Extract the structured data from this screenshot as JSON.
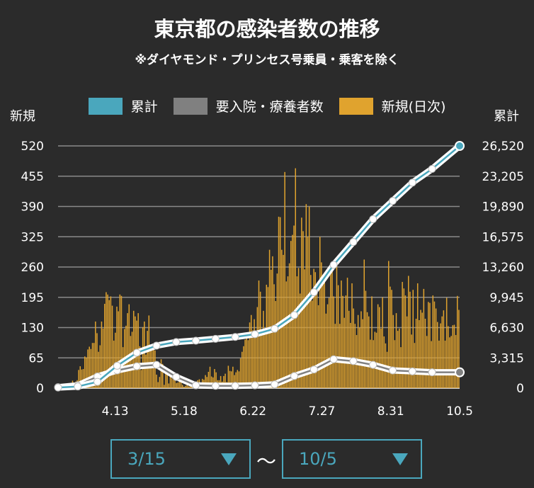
{
  "title": "東京都の感染者数の推移",
  "subtitle": "※ダイヤモンド・プリンセス号乗員・乗客を除く",
  "legend": [
    {
      "label": "累計",
      "color": "#4aa7bd"
    },
    {
      "label": "要入院・療養者数",
      "color": "#808080"
    },
    {
      "label": "新規(日次)",
      "color": "#e0a32e"
    }
  ],
  "axis": {
    "left_title": "新規",
    "right_title": "累計"
  },
  "range": {
    "from": "3/15",
    "to": "10/5",
    "separator": "～"
  },
  "chart_data": {
    "type": "bar",
    "x_start": "3/15",
    "x_end": "10/5",
    "x_ticks": [
      "4.13",
      "5.18",
      "6.22",
      "7.27",
      "8.31",
      "10.5"
    ],
    "y_left": {
      "ticks": [
        0,
        65,
        130,
        195,
        260,
        325,
        390,
        455,
        520
      ],
      "ylim": [
        0,
        520
      ]
    },
    "y_right": {
      "ticks": [
        "0",
        "3,315",
        "6,630",
        "9,945",
        "13,260",
        "16,575",
        "19,890",
        "23,205",
        "26,520"
      ],
      "ylim": [
        0,
        26520
      ]
    },
    "grid": true,
    "series": [
      {
        "name": "新規(日次)",
        "type": "bar",
        "axis": "left",
        "values": [
          1,
          3,
          2,
          5,
          4,
          7,
          2,
          10,
          2,
          16,
          8,
          14,
          17,
          39,
          47,
          40,
          41,
          68,
          66,
          83,
          89,
          84,
          97,
          97,
          143,
          118,
          78,
          92,
          143,
          128,
          181,
          206,
          201,
          189,
          197,
          177,
          102,
          119,
          175,
          165,
          201,
          198,
          88,
          127,
          134,
          161,
          180,
          112,
          121,
          166,
          154,
          145,
          161,
          90,
          39,
          131,
          143,
          72,
          123,
          156,
          91,
          86,
          85,
          81,
          29,
          13,
          24,
          62,
          52,
          7,
          39,
          30,
          10,
          32,
          21,
          18,
          23,
          11,
          12,
          14,
          17,
          7,
          3,
          5,
          8,
          4,
          9,
          10,
          13,
          14,
          4,
          17,
          19,
          12,
          20,
          18,
          28,
          24,
          35,
          46,
          25,
          23,
          41,
          34,
          17,
          17,
          26,
          14,
          26,
          31,
          13,
          48,
          37,
          36,
          46,
          28,
          34,
          39,
          36,
          64,
          78,
          90,
          104,
          116,
          103,
          141,
          157,
          124,
          148,
          112,
          174,
          231,
          207,
          127,
          166,
          120,
          222,
          217,
          297,
          254,
          283,
          223,
          187,
          246,
          368,
          367,
          297,
          286,
          464,
          229,
          240,
          268,
          316,
          329,
          349,
          472,
          240,
          258,
          203,
          366,
          337,
          255,
          395,
          325,
          390,
          243,
          188,
          256,
          249,
          223,
          178,
          325,
          270,
          228,
          248,
          160,
          180,
          194,
          252,
          257,
          197,
          138,
          264,
          221,
          138,
          231,
          198,
          151,
          199,
          237,
          166,
          140,
          225,
          171,
          138,
          114,
          157,
          130,
          165,
          148,
          276,
          209,
          163,
          154,
          104,
          197,
          103,
          121,
          119,
          180,
          174,
          128,
          195,
          111,
          96,
          78,
          273,
          218,
          211,
          157,
          103,
          161,
          123,
          128,
          88,
          228,
          214,
          199,
          154,
          241,
          207,
          115,
          211,
          97,
          149,
          225,
          146,
          168,
          162,
          213,
          149,
          112,
          185,
          183,
          101,
          199,
          186,
          171,
          142,
          102,
          139,
          154,
          167,
          102,
          194,
          133,
          109,
          112,
          135,
          136,
          114,
          198,
          168
        ]
      },
      {
        "name": "累計",
        "type": "line",
        "axis": "right",
        "color": "#4aa7bd",
        "x": [
          "3/15",
          "3/25",
          "4/4",
          "4/14",
          "4/24",
          "5/4",
          "5/14",
          "5/24",
          "6/3",
          "6/13",
          "6/23",
          "7/3",
          "7/13",
          "7/23",
          "8/2",
          "8/12",
          "8/22",
          "9/1",
          "9/11",
          "9/21",
          "10/5"
        ],
        "values": [
          70,
          180,
          690,
          2450,
          3880,
          4650,
          5050,
          5200,
          5400,
          5600,
          5900,
          6500,
          8000,
          10500,
          13500,
          16000,
          18500,
          20500,
          22500,
          24000,
          26520
        ]
      },
      {
        "name": "要入院・療養者数",
        "type": "line",
        "axis": "left",
        "color": "#808080",
        "x": [
          "3/15",
          "3/25",
          "4/4",
          "4/14",
          "4/24",
          "5/4",
          "5/14",
          "5/24",
          "6/3",
          "6/13",
          "6/23",
          "7/3",
          "7/13",
          "7/23",
          "8/2",
          "8/12",
          "8/22",
          "9/1",
          "9/11",
          "9/21",
          "10/5"
        ],
        "values": [
          2,
          6,
          25,
          38,
          47,
          50,
          24,
          6,
          5,
          5,
          6,
          8,
          26,
          40,
          62,
          58,
          50,
          38,
          36,
          34,
          34
        ]
      }
    ]
  }
}
